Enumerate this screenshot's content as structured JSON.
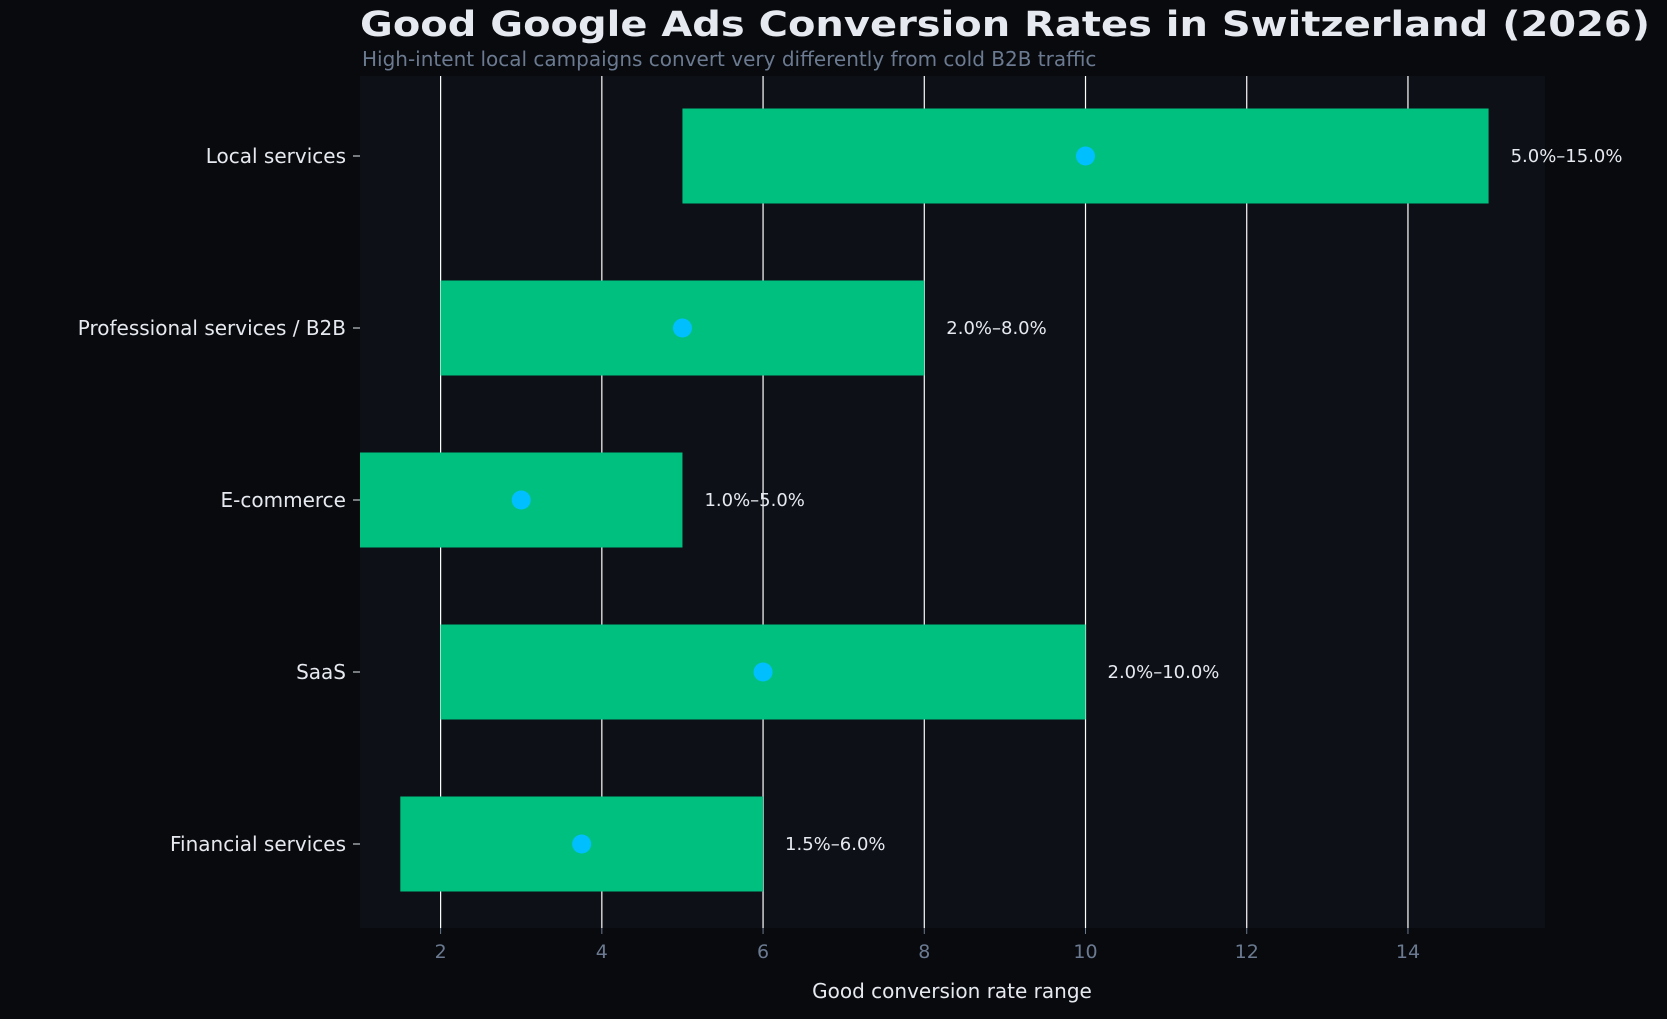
{
  "chart_data": {
    "type": "bar",
    "orientation": "horizontal",
    "title": "Good Google Ads Conversion Rates in Switzerland (2026)",
    "subtitle": "High-intent local campaigns convert very differently from cold B2B traffic",
    "xlabel": "Good conversion rate range",
    "ylabel": "",
    "xlim": [
      1.0,
      15.7
    ],
    "xticks": [
      2,
      4,
      6,
      8,
      10,
      12,
      14
    ],
    "grid": "vertical",
    "categories": [
      "Local services",
      "Professional services / B2B",
      "E-commerce",
      "SaaS",
      "Financial services"
    ],
    "ranges": [
      [
        5.0,
        15.0
      ],
      [
        2.0,
        8.0
      ],
      [
        1.0,
        5.0
      ],
      [
        2.0,
        10.0
      ],
      [
        1.5,
        6.0
      ]
    ],
    "midpoints": [
      10.0,
      5.0,
      3.0,
      6.0,
      3.75
    ],
    "labels": [
      "5.0%–15.0%",
      "2.0%–8.0%",
      "1.0%–5.0%",
      "2.0%–10.0%",
      "1.5%–6.0%"
    ],
    "colors": {
      "background": "#080a0e",
      "plot_background": "#0d1117",
      "bar": "#00c07f",
      "midpoint": "#00bfff",
      "grid": "#ffffff",
      "title": "#e6e9ef",
      "subtitle": "#6b7a90"
    }
  }
}
